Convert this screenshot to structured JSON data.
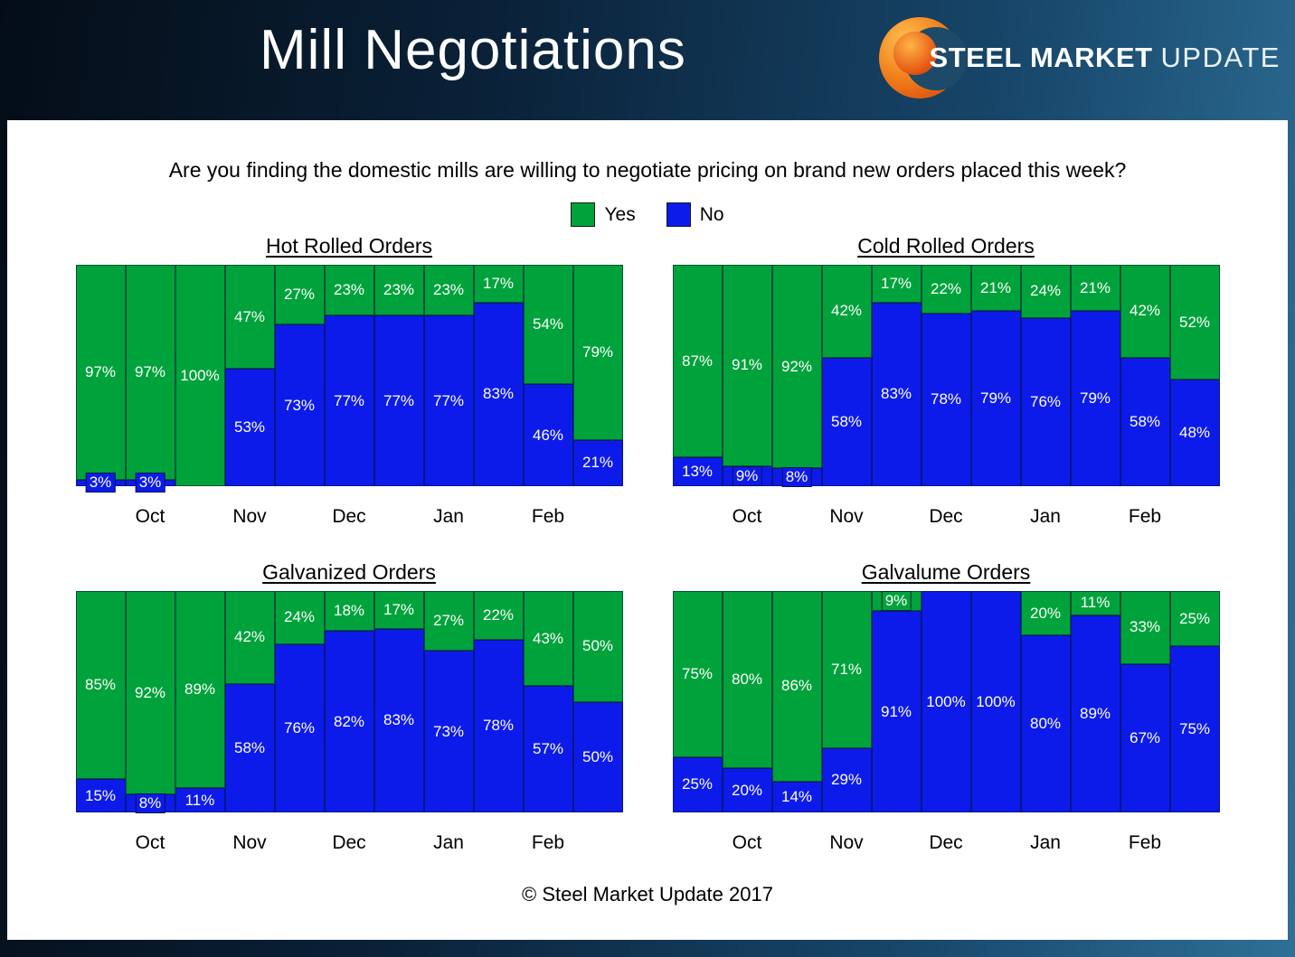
{
  "header": {
    "title": "Mill Negotiations",
    "logo": {
      "steel": "STEEL",
      "market": "MARKET",
      "update": "UPDATE"
    }
  },
  "question": "Are you finding the domestic mills are willing to negotiate pricing on brand new orders placed this week?",
  "legend": [
    {
      "label": "Yes",
      "key": "yes"
    },
    {
      "label": "No",
      "key": "no"
    }
  ],
  "colors": {
    "yes": "#00A33B",
    "no": "#0D1BEA"
  },
  "months": [
    "Oct",
    "Nov",
    "Dec",
    "Jan",
    "Feb"
  ],
  "month_bar_indices": [
    1,
    3,
    5,
    7,
    9
  ],
  "footer": "© Steel Market Update 2017",
  "chart_data": [
    {
      "type": "bar",
      "stacked": true,
      "unit": "%",
      "ylim": [
        0,
        100
      ],
      "title": "Hot Rolled Orders",
      "series": [
        {
          "name": "Yes",
          "values": [
            97,
            97,
            100,
            47,
            27,
            23,
            23,
            23,
            17,
            54,
            79
          ]
        },
        {
          "name": "No",
          "values": [
            3,
            3,
            0,
            53,
            73,
            77,
            77,
            77,
            83,
            46,
            21
          ]
        }
      ]
    },
    {
      "type": "bar",
      "stacked": true,
      "unit": "%",
      "ylim": [
        0,
        100
      ],
      "title": "Cold Rolled Orders",
      "series": [
        {
          "name": "Yes",
          "values": [
            87,
            91,
            92,
            42,
            17,
            22,
            21,
            24,
            21,
            42,
            52
          ]
        },
        {
          "name": "No",
          "values": [
            13,
            9,
            8,
            58,
            83,
            78,
            79,
            76,
            79,
            58,
            48
          ]
        }
      ]
    },
    {
      "type": "bar",
      "stacked": true,
      "unit": "%",
      "ylim": [
        0,
        100
      ],
      "title": "Galvanized Orders",
      "series": [
        {
          "name": "Yes",
          "values": [
            85,
            92,
            89,
            42,
            24,
            18,
            17,
            27,
            22,
            43,
            50
          ]
        },
        {
          "name": "No",
          "values": [
            15,
            8,
            11,
            58,
            76,
            82,
            83,
            73,
            78,
            57,
            50
          ]
        }
      ]
    },
    {
      "type": "bar",
      "stacked": true,
      "unit": "%",
      "ylim": [
        0,
        100
      ],
      "title": "Galvalume Orders",
      "series": [
        {
          "name": "Yes",
          "values": [
            75,
            80,
            86,
            71,
            9,
            0,
            0,
            20,
            11,
            33,
            25
          ]
        },
        {
          "name": "No",
          "values": [
            25,
            20,
            14,
            29,
            91,
            100,
            100,
            80,
            89,
            67,
            75
          ]
        }
      ]
    }
  ]
}
